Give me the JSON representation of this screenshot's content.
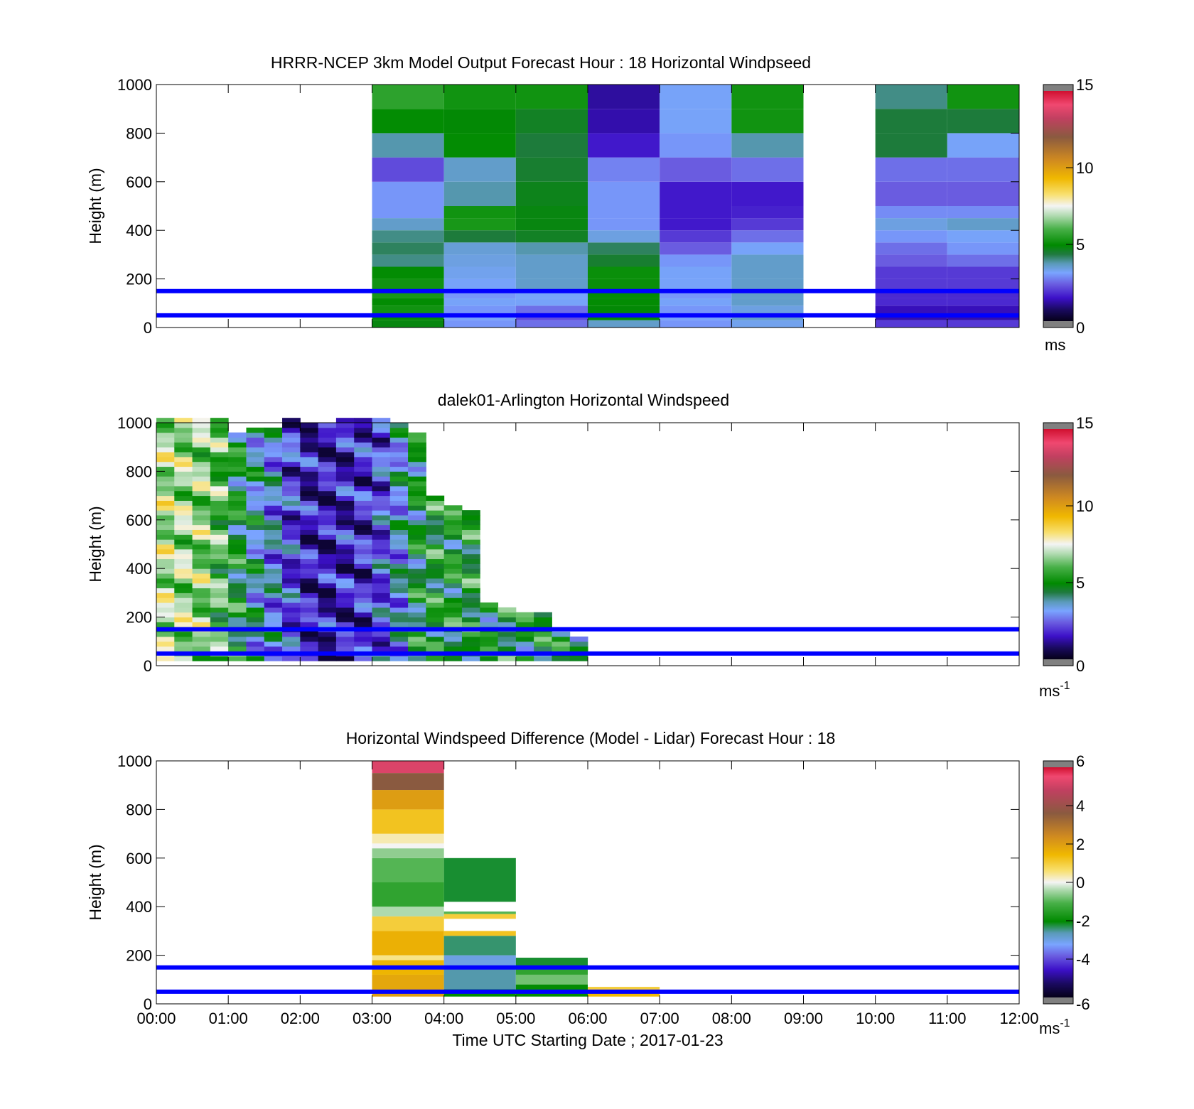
{
  "figure": {
    "xlabel": "Time UTC  Starting Date ; 2017-01-23",
    "x_tick_labels": [
      "00:00",
      "01:00",
      "02:00",
      "03:00",
      "04:00",
      "05:00",
      "06:00",
      "07:00",
      "08:00",
      "09:00",
      "10:00",
      "11:00",
      "12:00"
    ]
  },
  "chart_data": [
    {
      "type": "heatmap",
      "title": "HRRR-NCEP 3km Model Output   Forecast Hour : 18 Horizontal Windpseed",
      "ylabel": "Height (m)",
      "xlim_hours": [
        0,
        12
      ],
      "ylim": [
        0,
        1000
      ],
      "y_ticks": [
        0,
        200,
        400,
        600,
        800,
        1000
      ],
      "colorbar": {
        "label": "ms",
        "min": 0,
        "max": 15,
        "ticks": [
          0,
          5,
          10,
          15
        ]
      },
      "reference_lines_m": [
        50,
        150
      ],
      "reference_line_color": "#0000ff",
      "columns": [
        {
          "start_hour": 3,
          "bins_top_m": [
            30,
            60,
            90,
            120,
            150,
            200,
            250,
            300,
            350,
            400,
            450,
            500,
            600,
            700,
            800,
            900,
            1000
          ],
          "values": [
            4.8,
            5.0,
            5.2,
            5.0,
            5.3,
            5.2,
            5.0,
            4.0,
            4.2,
            4.0,
            3.6,
            3.0,
            3.0,
            2.2,
            3.8,
            5.0,
            5.6
          ]
        },
        {
          "start_hour": 4,
          "bins_top_m": [
            30,
            60,
            90,
            120,
            150,
            200,
            250,
            300,
            350,
            400,
            450,
            500,
            600,
            700,
            800,
            900,
            1000
          ],
          "values": [
            3.0,
            3.2,
            3.0,
            3.2,
            3.0,
            3.2,
            3.3,
            3.4,
            3.5,
            4.4,
            5.3,
            5.2,
            3.8,
            3.6,
            5.0,
            4.9,
            5.2
          ]
        },
        {
          "start_hour": 5,
          "bins_top_m": [
            30,
            60,
            90,
            120,
            150,
            200,
            250,
            300,
            350,
            400,
            450,
            500,
            600,
            700,
            800,
            900,
            1000
          ],
          "values": [
            2.6,
            2.2,
            2.6,
            3.2,
            3.2,
            3.6,
            3.6,
            3.6,
            3.8,
            4.6,
            4.8,
            4.8,
            4.7,
            4.5,
            4.4,
            4.6,
            5.2
          ]
        },
        {
          "start_hour": 6,
          "bins_top_m": [
            30,
            60,
            90,
            120,
            150,
            200,
            250,
            300,
            350,
            400,
            450,
            500,
            600,
            700,
            800,
            900,
            1000
          ],
          "values": [
            3.6,
            4.9,
            4.9,
            5.0,
            5.0,
            5.1,
            5.1,
            4.5,
            4.2,
            3.4,
            3.0,
            3.0,
            3.0,
            2.8,
            1.6,
            1.3,
            1.2
          ]
        },
        {
          "start_hour": 7,
          "bins_top_m": [
            30,
            60,
            90,
            120,
            150,
            200,
            250,
            300,
            350,
            400,
            450,
            500,
            600,
            700,
            800,
            900,
            1000
          ],
          "values": [
            3.0,
            3.2,
            3.0,
            3.2,
            3.0,
            3.2,
            3.2,
            3.0,
            2.4,
            2.0,
            1.6,
            1.6,
            1.6,
            2.4,
            3.0,
            3.2,
            3.2
          ]
        },
        {
          "start_hour": 8,
          "bins_top_m": [
            30,
            60,
            90,
            120,
            150,
            200,
            250,
            300,
            350,
            400,
            450,
            500,
            600,
            700,
            800,
            900,
            1000
          ],
          "values": [
            3.3,
            3.6,
            3.4,
            3.6,
            3.6,
            3.6,
            3.6,
            3.6,
            3.2,
            2.6,
            2.0,
            1.7,
            1.6,
            2.6,
            3.8,
            5.2,
            5.2
          ]
        },
        {
          "start_hour": 10,
          "bins_top_m": [
            30,
            60,
            90,
            120,
            150,
            200,
            250,
            300,
            350,
            400,
            450,
            500,
            600,
            700,
            800,
            900,
            1000
          ],
          "values": [
            2.0,
            1.3,
            1.4,
            1.8,
            1.8,
            2.0,
            2.0,
            2.4,
            2.6,
            3.0,
            3.4,
            2.9,
            2.4,
            2.6,
            4.4,
            4.4,
            4.0
          ]
        },
        {
          "start_hour": 11,
          "bins_top_m": [
            30,
            60,
            90,
            120,
            150,
            200,
            250,
            300,
            350,
            400,
            450,
            500,
            600,
            700,
            800,
            900,
            1000
          ],
          "values": [
            2.0,
            1.3,
            1.4,
            1.8,
            1.8,
            2.0,
            2.0,
            2.6,
            3.0,
            3.2,
            3.6,
            2.9,
            2.4,
            2.6,
            3.2,
            4.4,
            5.2
          ]
        }
      ]
    },
    {
      "type": "heatmap",
      "title": "dalek01-Arlington  Horizontal Windspeed",
      "ylabel": "Height (m)",
      "xlim_hours": [
        0,
        12
      ],
      "ylim": [
        0,
        1000
      ],
      "y_ticks": [
        0,
        200,
        400,
        600,
        800,
        1000
      ],
      "colorbar": {
        "label": "ms",
        "label_superscript": "-1",
        "min": 0,
        "max": 15,
        "ticks": [
          0,
          5,
          10,
          15
        ]
      },
      "reference_lines_m": [
        50,
        150
      ],
      "reference_line_color": "#0000ff",
      "profile_interval_min": 15,
      "profiles": [
        {
          "t": 0.0,
          "top_m": 1000,
          "base": 7.0
        },
        {
          "t": 0.25,
          "top_m": 1000,
          "base": 6.8
        },
        {
          "t": 0.5,
          "top_m": 1000,
          "base": 6.6
        },
        {
          "t": 0.75,
          "top_m": 1000,
          "base": 6.0
        },
        {
          "t": 1.0,
          "top_m": 940,
          "base": 4.8
        },
        {
          "t": 1.25,
          "top_m": 960,
          "base": 3.8
        },
        {
          "t": 1.5,
          "top_m": 960,
          "base": 3.2
        },
        {
          "t": 1.75,
          "top_m": 1000,
          "base": 2.2
        },
        {
          "t": 2.0,
          "top_m": 980,
          "base": 1.5
        },
        {
          "t": 2.25,
          "top_m": 980,
          "base": 1.4
        },
        {
          "t": 2.5,
          "top_m": 1000,
          "base": 1.6
        },
        {
          "t": 2.75,
          "top_m": 1000,
          "base": 1.8
        },
        {
          "t": 3.0,
          "top_m": 1000,
          "base": 2.4
        },
        {
          "t": 3.25,
          "top_m": 990,
          "base": 3.4
        },
        {
          "t": 3.5,
          "top_m": 950,
          "base": 4.6
        },
        {
          "t": 3.75,
          "top_m": 680,
          "base": 5.0
        },
        {
          "t": 4.0,
          "top_m": 640,
          "base": 5.0
        },
        {
          "t": 4.25,
          "top_m": 620,
          "base": 5.0
        },
        {
          "t": 4.5,
          "top_m": 250,
          "base": 4.8
        },
        {
          "t": 4.75,
          "top_m": 220,
          "base": 4.8
        },
        {
          "t": 5.0,
          "top_m": 210,
          "base": 4.8
        },
        {
          "t": 5.25,
          "top_m": 200,
          "base": 4.8
        },
        {
          "t": 5.5,
          "top_m": 130,
          "base": 4.6
        },
        {
          "t": 5.75,
          "top_m": 110,
          "base": 4.4
        }
      ]
    },
    {
      "type": "heatmap",
      "title": "Horizontal Windspeed Difference (Model - Lidar) Forecast Hour : 18",
      "ylabel": "Height (m)",
      "xlim_hours": [
        0,
        12
      ],
      "ylim": [
        0,
        1000
      ],
      "y_ticks": [
        0,
        200,
        400,
        600,
        800,
        1000
      ],
      "colorbar": {
        "label": "ms",
        "label_superscript": "-1",
        "min": -6,
        "max": 6,
        "ticks": [
          -6,
          -4,
          -2,
          0,
          2,
          4,
          6
        ]
      },
      "reference_lines_m": [
        50,
        150
      ],
      "reference_line_color": "#0000ff",
      "columns": [
        {
          "start_hour": 3,
          "end_hour": 4,
          "bands": [
            {
              "from": 30,
              "to": 60,
              "value": 2.0
            },
            {
              "from": 60,
              "to": 120,
              "value": 1.8
            },
            {
              "from": 120,
              "to": 180,
              "value": 1.5
            },
            {
              "from": 180,
              "to": 200,
              "value": 0.5
            },
            {
              "from": 200,
              "to": 300,
              "value": 1.6
            },
            {
              "from": 300,
              "to": 360,
              "value": 1.0
            },
            {
              "from": 360,
              "to": 400,
              "value": -0.4
            },
            {
              "from": 400,
              "to": 500,
              "value": -1.4
            },
            {
              "from": 500,
              "to": 600,
              "value": -1.0
            },
            {
              "from": 600,
              "to": 640,
              "value": -0.6
            },
            {
              "from": 640,
              "to": 660,
              "value": 0.0
            },
            {
              "from": 660,
              "to": 700,
              "value": 0.3
            },
            {
              "from": 700,
              "to": 800,
              "value": 1.2
            },
            {
              "from": 800,
              "to": 880,
              "value": 2.0
            },
            {
              "from": 880,
              "to": 950,
              "value": 3.6
            },
            {
              "from": 950,
              "to": 1000,
              "value": 5.2
            }
          ]
        },
        {
          "start_hour": 4,
          "end_hour": 5,
          "bands": [
            {
              "from": 30,
              "to": 60,
              "value": -2.0
            },
            {
              "from": 60,
              "to": 150,
              "value": -2.6
            },
            {
              "from": 150,
              "to": 200,
              "value": -3.0
            },
            {
              "from": 200,
              "to": 280,
              "value": -2.4
            },
            {
              "from": 280,
              "to": 300,
              "value": 1.2
            },
            {
              "from": 350,
              "to": 370,
              "value": 1.0
            },
            {
              "from": 370,
              "to": 380,
              "value": -1.0
            },
            {
              "from": 420,
              "to": 600,
              "value": -2.2
            }
          ]
        },
        {
          "start_hour": 5,
          "end_hour": 6,
          "bands": [
            {
              "from": 30,
              "to": 80,
              "value": -2.0
            },
            {
              "from": 80,
              "to": 120,
              "value": -0.8
            },
            {
              "from": 120,
              "to": 150,
              "value": -1.4
            },
            {
              "from": 150,
              "to": 190,
              "value": -2.2
            }
          ]
        },
        {
          "start_hour": 6,
          "end_hour": 7,
          "bands": [
            {
              "from": 30,
              "to": 50,
              "value": 1.4
            },
            {
              "from": 50,
              "to": 70,
              "value": 1.0
            }
          ]
        }
      ]
    }
  ]
}
